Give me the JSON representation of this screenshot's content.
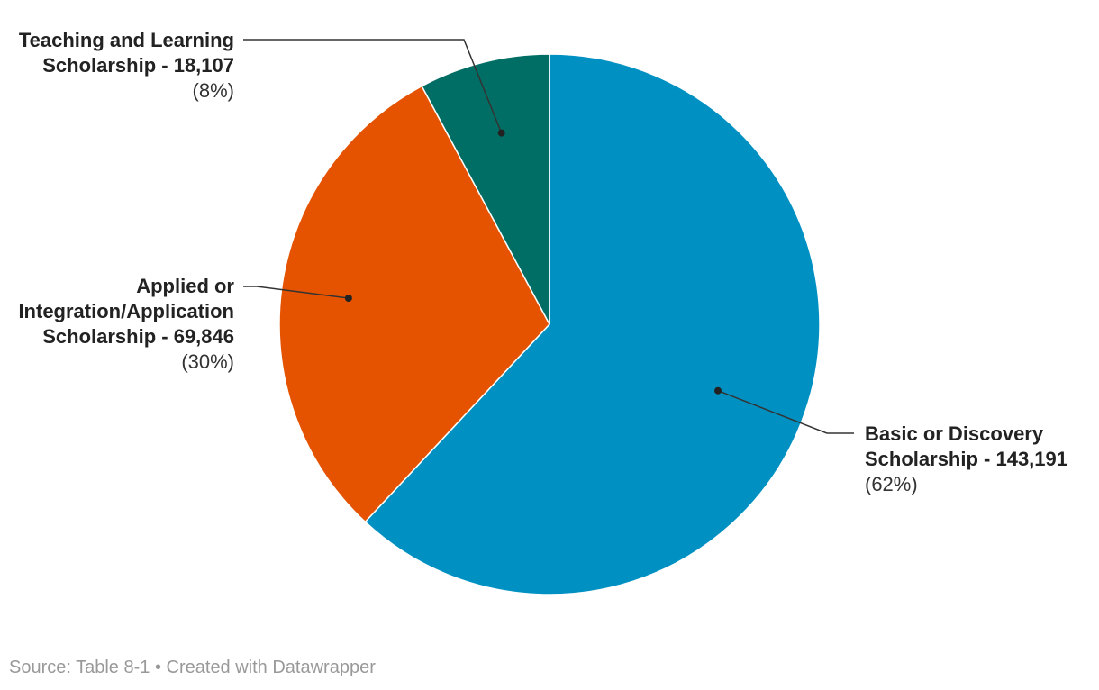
{
  "chart_data": {
    "type": "pie",
    "slices": [
      {
        "label_lines": [
          "Basic or Discovery",
          "Scholarship - 143,191"
        ],
        "value": 143191,
        "pct_label": "(62%)",
        "color": "#0091c2"
      },
      {
        "label_lines": [
          "Applied or",
          "Integration/Application",
          "Scholarship - 69,846"
        ],
        "value": 69846,
        "pct_label": "(30%)",
        "color": "#e55300"
      },
      {
        "label_lines": [
          "Teaching and Learning",
          "Scholarship - 18,107"
        ],
        "value": 18107,
        "pct_label": "(8%)",
        "color": "#006e65"
      }
    ],
    "start": "top",
    "direction": "clockwise"
  },
  "footer": {
    "source": "Source: Table 8-1",
    "separator": " • ",
    "credit": "Created with Datawrapper"
  }
}
